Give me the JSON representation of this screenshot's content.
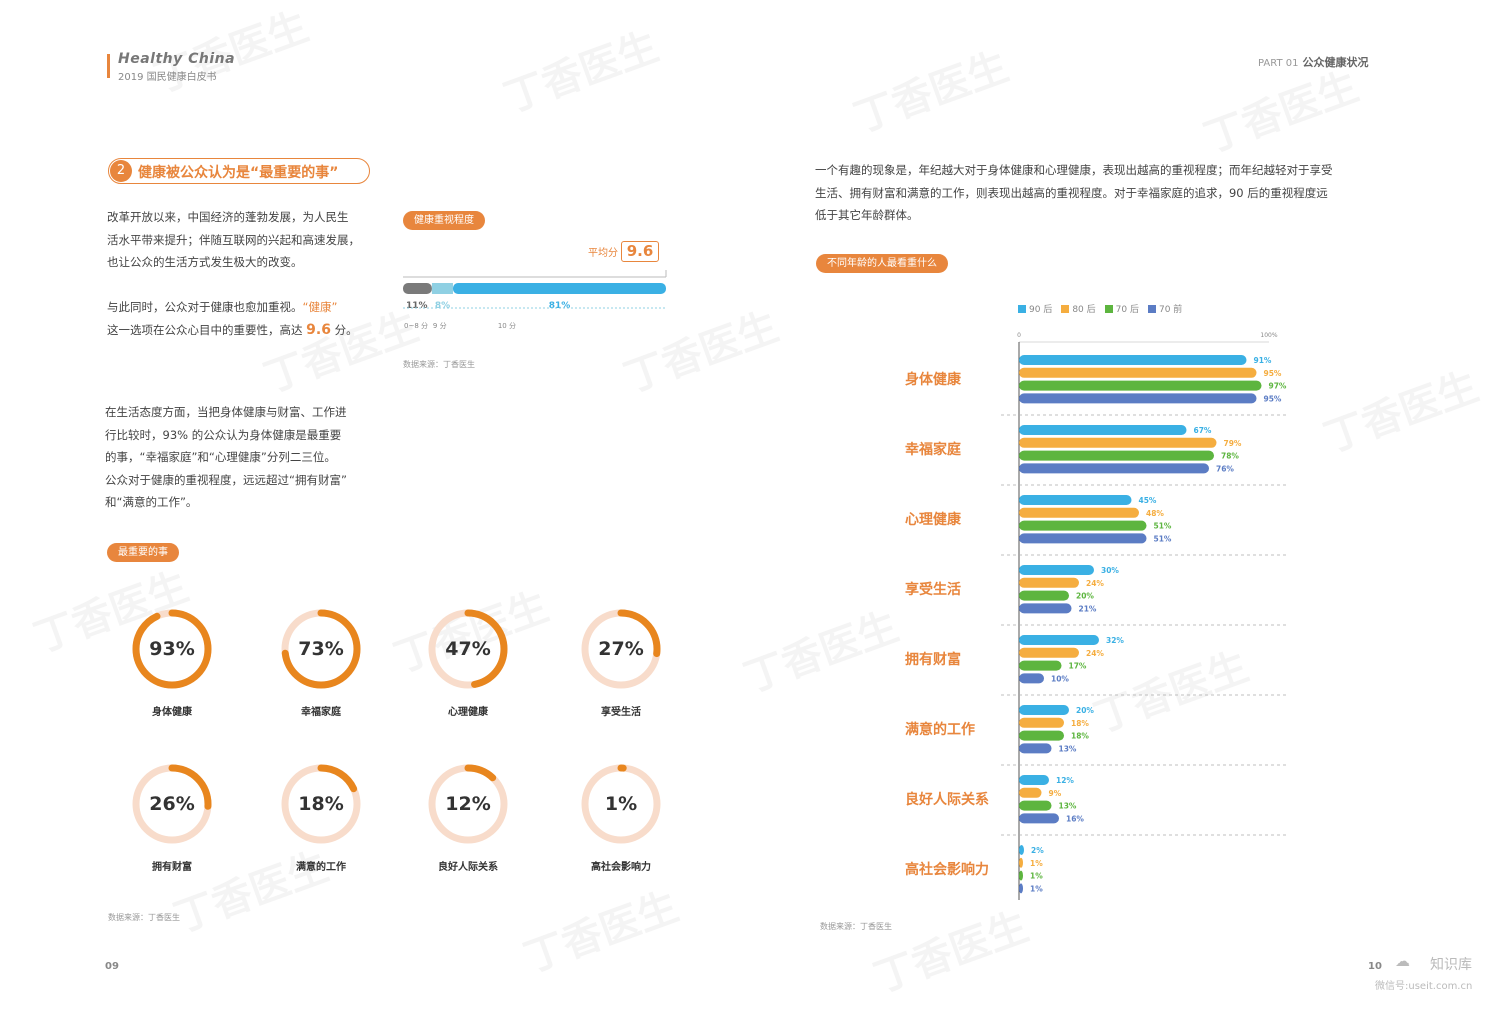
{
  "header": {
    "brand_title": "Healthy China",
    "brand_subtitle": "2019 国民健康白皮书",
    "part_label": "PART 01",
    "part_title": "公众健康状况"
  },
  "section": {
    "number": "2",
    "title": "健康被公众认为是“最重要的事”"
  },
  "left": {
    "para1": [
      "改革开放以来，中国经济的蓬勃发展，为人民生",
      "活水平带来提升；伴随互联网的兴起和高速发展，",
      "也让公众的生活方式发生极大的改变。"
    ],
    "para2_prefix": "与此同时，公众对于健康也愈加重视。",
    "para2_hl": "“健康”",
    "para2_line2_prefix": "这一选项在公众心目中的重要性，高达 ",
    "para2_score": "9.6",
    "para2_suffix": " 分。",
    "para3": [
      "在生活态度方面，当把身体健康与财富、工作进",
      "行比较时，93% 的公众认为身体健康是最重要",
      "的事，“幸福家庭”和“心理健康”分列二三位。",
      "公众对于健康的重视程度，远远超过“拥有财富”",
      "和“满意的工作”。"
    ],
    "health_tag": "健康重视程度",
    "avg_label": "平均分",
    "avg_value": "9.6",
    "bar_segments": [
      {
        "label": "11%",
        "value": 11,
        "color": "#7a7a7a",
        "axis": "0~8 分"
      },
      {
        "label": "8%",
        "value": 8,
        "color": "#8fd0e3",
        "axis": "9 分"
      },
      {
        "label": "81%",
        "value": 81,
        "color": "#3ab0e4",
        "axis": "10 分"
      }
    ],
    "source1": "数据来源：丁香医生",
    "most_tag": "最重要的事",
    "source2": "数据来源：丁香医生",
    "page_number": "09"
  },
  "donuts": [
    {
      "value": 93,
      "label": "93%",
      "name": "身体健康"
    },
    {
      "value": 73,
      "label": "73%",
      "name": "幸福家庭"
    },
    {
      "value": 47,
      "label": "47%",
      "name": "心理健康"
    },
    {
      "value": 27,
      "label": "27%",
      "name": "享受生活"
    },
    {
      "value": 26,
      "label": "26%",
      "name": "拥有财富"
    },
    {
      "value": 18,
      "label": "18%",
      "name": "满意的工作"
    },
    {
      "value": 12,
      "label": "12%",
      "name": "良好人际关系"
    },
    {
      "value": 1,
      "label": "1%",
      "name": "高社会影响力"
    }
  ],
  "right": {
    "intro": [
      "一个有趣的现象是，年纪越大对于身体健康和心理健康，表现出越高的重视程度；而年纪越轻对于享受",
      "生活、拥有财富和满意的工作，则表现出越高的重视程度。对于幸福家庭的追求，90 后的重视程度远",
      "低于其它年龄群体。"
    ],
    "chart_tag": "不同年龄的人最看重什么",
    "source": "数据来源：丁香医生",
    "page_number": "10",
    "footer_logo": "知识库",
    "footer_id": "微信号:useit.com.cn"
  },
  "chart_data": {
    "type": "bar",
    "orientation": "horizontal",
    "title": "不同年龄的人最看重什么",
    "xlim": [
      0,
      100
    ],
    "axis_min_label": "0",
    "axis_max_label": "100%",
    "categories": [
      "身体健康",
      "幸福家庭",
      "心理健康",
      "享受生活",
      "拥有财富",
      "满意的工作",
      "良好人际关系",
      "高社会影响力"
    ],
    "series": [
      {
        "name": "90 后",
        "color": "#3ab0e4",
        "values": [
          91,
          67,
          45,
          30,
          32,
          20,
          12,
          2
        ]
      },
      {
        "name": "80 后",
        "color": "#f5ad3f",
        "values": [
          95,
          79,
          48,
          24,
          24,
          18,
          9,
          1
        ]
      },
      {
        "name": "70 后",
        "color": "#5db53f",
        "values": [
          97,
          78,
          51,
          20,
          17,
          18,
          13,
          1
        ]
      },
      {
        "name": "70 前",
        "color": "#5b7cc4",
        "values": [
          95,
          76,
          51,
          21,
          10,
          13,
          16,
          1
        ]
      }
    ],
    "legend": "top"
  },
  "watermark": "丁香医生"
}
